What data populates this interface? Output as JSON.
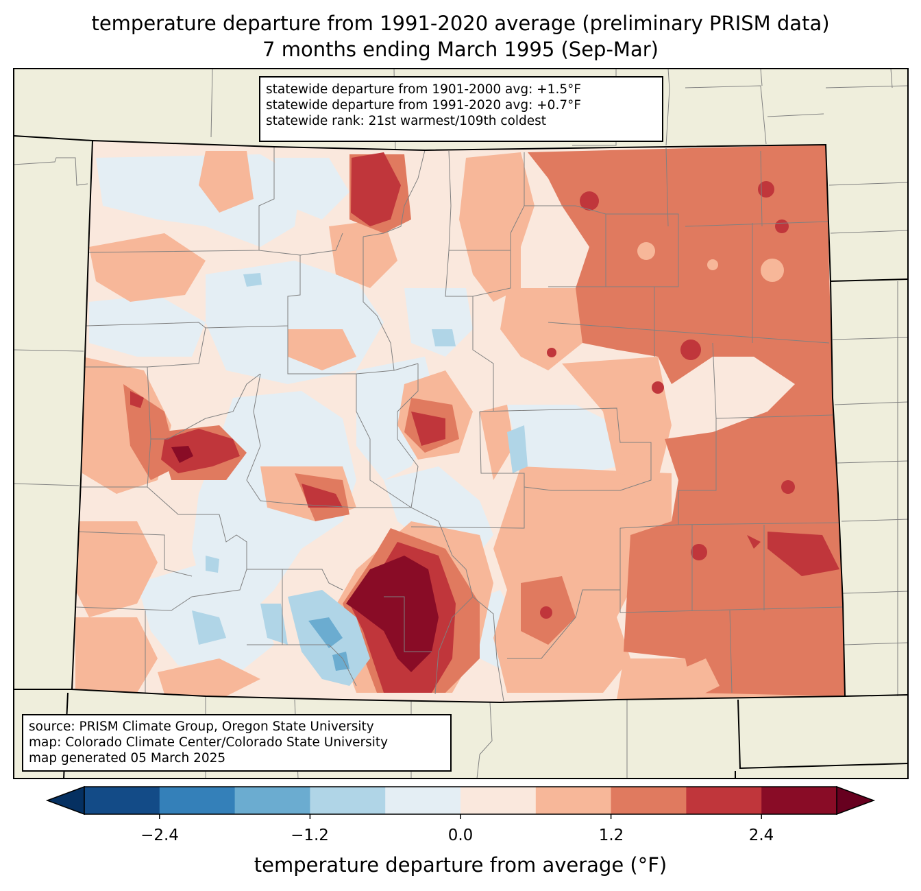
{
  "title": {
    "line1": "temperature departure from 1991-2020 average (preliminary PRISM data)",
    "line2": "7 months ending March 1995 (Sep-Mar)"
  },
  "stats": {
    "line1": "statewide departure from 1901-2000 avg: +1.5°F",
    "line2": "statewide departure from 1991-2020 avg: +0.7°F",
    "line3": "statewide rank: 21st warmest/109th coldest"
  },
  "credits": {
    "line1": "source: PRISM Climate Group, Oregon State University",
    "line2": "map: Colorado Climate Center/Colorado State University",
    "line3": "map generated 05 March 2025"
  },
  "colorbar": {
    "label": "temperature departure from average (°F)",
    "ticks": [
      "−2.4",
      "−1.2",
      "0.0",
      "1.2",
      "2.4"
    ],
    "levels": [
      -3.0,
      -2.4,
      -1.8,
      -1.2,
      -0.6,
      0.0,
      0.6,
      1.2,
      1.8,
      2.4,
      3.0
    ],
    "colors": [
      "#053061",
      "#134b87",
      "#3480b9",
      "#6bacd0",
      "#b0d5e7",
      "#e4eef4",
      "#fae8dd",
      "#f7b799",
      "#e07a5f",
      "#c0363b",
      "#890c26",
      "#67001f"
    ]
  },
  "map_colors": {
    "land": "#efeedc",
    "state_border": "#000000",
    "county_border": "#808080"
  }
}
